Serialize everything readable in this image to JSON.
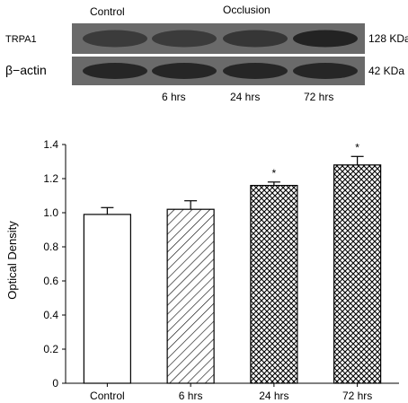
{
  "blot": {
    "header_control": "Control",
    "header_occlusion": "Occlusion",
    "row1_label": "TRPA1",
    "row1_weight": "128 KDa",
    "row2_label": "β−actin",
    "row2_weight": "42 KDa",
    "lane_labels": [
      "6 hrs",
      "24 hrs",
      "72 hrs"
    ],
    "row1_band_intensity": [
      0.55,
      0.55,
      0.62,
      0.9
    ],
    "row2_band_intensity": [
      0.85,
      0.85,
      0.85,
      0.85
    ]
  },
  "chart_data": {
    "type": "bar",
    "categories": [
      "Control",
      "6 hrs",
      "24 hrs",
      "72 hrs"
    ],
    "values": [
      0.99,
      1.02,
      1.16,
      1.28
    ],
    "errors": [
      0.04,
      0.05,
      0.02,
      0.05
    ],
    "significance": [
      "",
      "",
      "*",
      "*"
    ],
    "patterns": [
      "none",
      "diagonal",
      "crosshatch",
      "crosshatch"
    ],
    "title": "",
    "xlabel": "",
    "ylabel": "Optical Density",
    "ylim": [
      0,
      1.4
    ],
    "yticks": [
      "0",
      "0.2",
      "0.4",
      "0.6",
      "0.8",
      "1.0",
      "1.2",
      "1.4"
    ],
    "grid": false
  }
}
